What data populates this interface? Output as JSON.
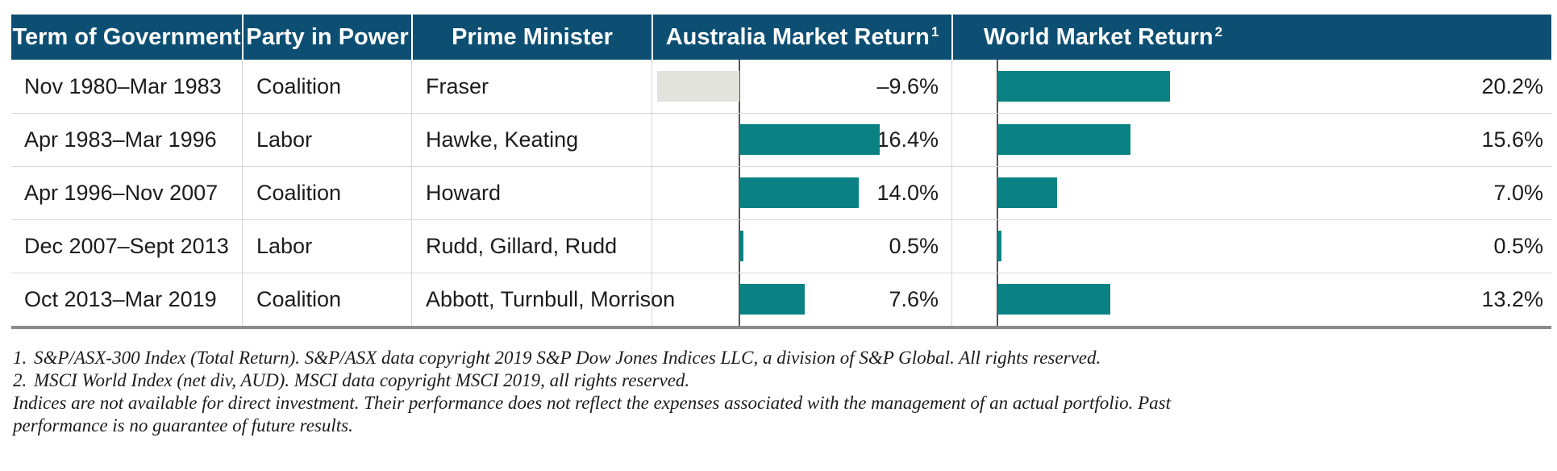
{
  "colors": {
    "header_bg": "#0d4f73",
    "positive_bar": "#0a8284",
    "negative_bar": "#e3e3de"
  },
  "headers": {
    "term": "Term of Government",
    "party": "Party in Power",
    "pm": "Prime Minister",
    "aus": "Australia Market Return",
    "aus_sup": "1",
    "world": "World Market Return",
    "world_sup": "2"
  },
  "rows": [
    {
      "term": "Nov 1980–Mar 1983",
      "party": "Coalition",
      "pm": "Fraser",
      "aus_label": "–9.6%",
      "world_label": "20.2%"
    },
    {
      "term": "Apr 1983–Mar 1996",
      "party": "Labor",
      "pm": "Hawke, Keating",
      "aus_label": "16.4%",
      "world_label": "15.6%"
    },
    {
      "term": "Apr 1996–Nov 2007",
      "party": "Coalition",
      "pm": "Howard",
      "aus_label": "14.0%",
      "world_label": "7.0%"
    },
    {
      "term": "Dec 2007–Sept 2013",
      "party": "Labor",
      "pm": "Rudd, Gillard, Rudd",
      "aus_label": "0.5%",
      "world_label": "0.5%"
    },
    {
      "term": "Oct 2013–Mar 2019",
      "party": "Coalition",
      "pm": "Abbott, Turnbull, Morrison",
      "aus_label": "7.6%",
      "world_label": "13.2%"
    }
  ],
  "chart_data": {
    "type": "bar",
    "orientation": "horizontal",
    "categories": [
      "Nov 1980–Mar 1983",
      "Apr 1983–Mar 1996",
      "Apr 1996–Nov 2007",
      "Dec 2007–Sept 2013",
      "Oct 2013–Mar 2019"
    ],
    "series": [
      {
        "name": "Australia Market Return",
        "values": [
          -9.6,
          16.4,
          14.0,
          0.5,
          7.6
        ]
      },
      {
        "name": "World Market Return",
        "values": [
          20.2,
          15.6,
          7.0,
          0.5,
          13.2
        ]
      }
    ],
    "unit": "%"
  },
  "notes": [
    {
      "num": "1.",
      "text": "S&P/ASX-300 Index (Total Return). S&P/ASX data copyright 2019 S&P Dow Jones Indices LLC, a division of S&P Global. All rights reserved."
    },
    {
      "num": "2.",
      "text": "MSCI World Index (net div, AUD). MSCI data copyright MSCI 2019, all rights reserved."
    }
  ],
  "disclaimer": [
    "Indices are not available for direct investment. Their performance does not reflect the expenses associated with the management of an actual portfolio.  Past",
    "performance is no guarantee of future results."
  ]
}
